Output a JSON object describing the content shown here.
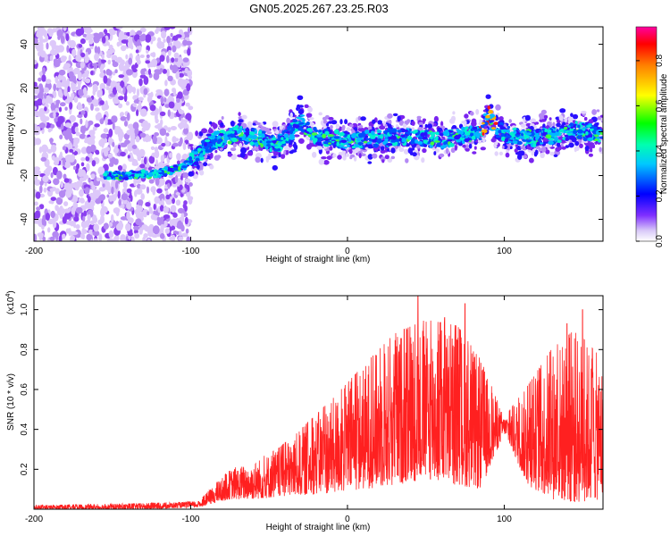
{
  "chart_data": [
    {
      "type": "heatmap",
      "title": "GN05.2025.267.23.25.R03",
      "xlabel": "Height of straight line (km)",
      "ylabel": "Frequency (Hz)",
      "xlim": [
        -200,
        163
      ],
      "ylim": [
        -50,
        48
      ],
      "x_ticks": [
        -200,
        -100,
        0,
        100
      ],
      "x_tick_labels": [
        "-200",
        "-100",
        "0",
        "100"
      ],
      "y_ticks": [
        -40,
        -20,
        0,
        20,
        40
      ],
      "y_tick_labels": [
        "-40",
        "-20",
        "0",
        "20",
        "40"
      ],
      "colorbar": {
        "label": "Normalized spectral amplitude",
        "range": [
          0,
          0.95
        ],
        "ticks": [
          0,
          0.2,
          0.4,
          0.6,
          0.8
        ],
        "tick_labels": [
          "0.0",
          "0.2",
          "0.4",
          "0.6",
          "0.8"
        ]
      },
      "ridge": {
        "x": [
          -155,
          -140,
          -120,
          -105,
          -95,
          -85,
          -70,
          -55,
          -45,
          -35,
          -30,
          -20,
          -10,
          0,
          20,
          40,
          60,
          75,
          85,
          90,
          95,
          105,
          115,
          130,
          145,
          163
        ],
        "y": [
          -20,
          -20,
          -19,
          -16,
          -10,
          -4,
          -1,
          -3,
          -6,
          0,
          5,
          -2,
          -3,
          -4,
          -3,
          -2,
          -4,
          -1,
          0,
          8,
          1,
          -2,
          -3,
          -2,
          1,
          -1
        ],
        "peak_x": [
          85,
          95
        ]
      }
    },
    {
      "type": "line",
      "xlabel": "Height of straight line (km)",
      "ylabel": "SNR (10 * v/v)",
      "y_multiplier_label": "(x10",
      "y_multiplier_exp": "4",
      "xlim": [
        -200,
        163
      ],
      "ylim": [
        0,
        1.07
      ],
      "x_ticks": [
        -200,
        -100,
        0,
        100
      ],
      "x_tick_labels": [
        "-200",
        "-100",
        "0",
        "100"
      ],
      "y_ticks": [
        0.2,
        0.4,
        0.6,
        0.8,
        1.0
      ],
      "y_tick_labels": [
        "0.2",
        "0.4",
        "0.6",
        "0.8",
        "1.0"
      ],
      "series_color": "#ff2020",
      "envelope": {
        "x": [
          -200,
          -130,
          -95,
          -85,
          -75,
          -60,
          -45,
          -30,
          -10,
          10,
          30,
          50,
          70,
          85,
          100,
          115,
          130,
          145,
          163
        ],
        "low": [
          0.0,
          0.0,
          0.01,
          0.03,
          0.05,
          0.05,
          0.06,
          0.07,
          0.08,
          0.1,
          0.12,
          0.15,
          0.12,
          0.1,
          0.38,
          0.12,
          0.05,
          0.03,
          0.05
        ],
        "high": [
          0.02,
          0.03,
          0.04,
          0.12,
          0.2,
          0.24,
          0.3,
          0.4,
          0.55,
          0.72,
          0.88,
          0.95,
          0.92,
          0.75,
          0.46,
          0.62,
          0.8,
          0.9,
          0.75
        ]
      },
      "peaks": [
        [
          45,
          1.07
        ],
        [
          75,
          1.03
        ],
        [
          62,
          0.96
        ],
        [
          38,
          0.9
        ],
        [
          150,
          1.0
        ],
        [
          140,
          0.93
        ]
      ]
    }
  ]
}
